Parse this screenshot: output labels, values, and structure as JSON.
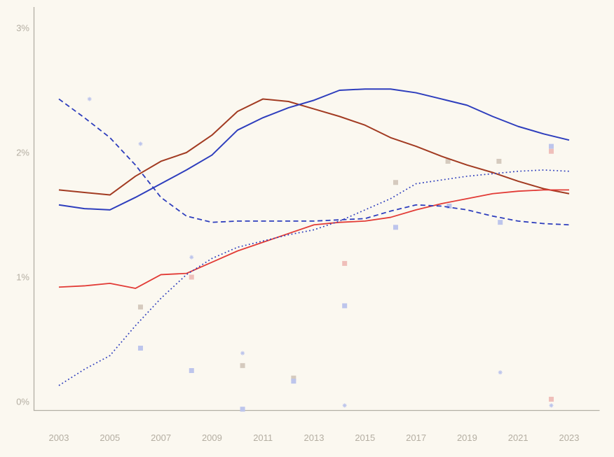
{
  "chart_data": {
    "type": "line",
    "title": "",
    "xlabel": "",
    "ylabel": "",
    "background": "#fbf8f0",
    "axis_color": "#b3afa5",
    "label_color": "#b4aea2",
    "ylim": [
      -0.1,
      3.2
    ],
    "xlim": [
      2003,
      2023
    ],
    "grid": false,
    "legend": "none",
    "x": [
      2003,
      2004,
      2005,
      2006,
      2007,
      2008,
      2009,
      2010,
      2011,
      2012,
      2013,
      2014,
      2015,
      2016,
      2017,
      2018,
      2019,
      2020,
      2021,
      2022,
      2023
    ],
    "x_ticks": [
      {
        "value": 2003,
        "label": "2003"
      },
      {
        "value": 2005,
        "label": "2005"
      },
      {
        "value": 2007,
        "label": "2007"
      },
      {
        "value": 2009,
        "label": "2009"
      },
      {
        "value": 2011,
        "label": "2011"
      },
      {
        "value": 2013,
        "label": "2013"
      },
      {
        "value": 2015,
        "label": "2015"
      },
      {
        "value": 2017,
        "label": "2017"
      },
      {
        "value": 2019,
        "label": "2019"
      },
      {
        "value": 2021,
        "label": "2021"
      },
      {
        "value": 2023,
        "label": "2023"
      }
    ],
    "y_ticks": [
      {
        "value": 0,
        "label": "0%"
      },
      {
        "value": 1,
        "label": "1%"
      },
      {
        "value": 2,
        "label": "2%"
      },
      {
        "value": 3,
        "label": "3%"
      }
    ],
    "series": [
      {
        "name": "dark-red-solid",
        "style": "solid",
        "color": "#a23b22",
        "width": 2,
        "values": [
          1.7,
          1.68,
          1.66,
          1.81,
          1.93,
          2.0,
          2.14,
          2.33,
          2.43,
          2.41,
          2.35,
          2.29,
          2.22,
          2.12,
          2.05,
          1.97,
          1.9,
          1.84,
          1.77,
          1.71,
          1.67
        ]
      },
      {
        "name": "blue-solid",
        "style": "solid",
        "color": "#2e3ebd",
        "width": 2,
        "values": [
          1.58,
          1.55,
          1.54,
          1.64,
          1.75,
          1.86,
          1.98,
          2.18,
          2.28,
          2.36,
          2.42,
          2.5,
          2.51,
          2.51,
          2.48,
          2.43,
          2.38,
          2.29,
          2.21,
          2.15,
          2.1
        ]
      },
      {
        "name": "red-solid",
        "style": "solid",
        "color": "#e23b36",
        "width": 1.8,
        "values": [
          0.92,
          0.93,
          0.95,
          0.91,
          1.02,
          1.03,
          1.12,
          1.21,
          1.28,
          1.35,
          1.42,
          1.44,
          1.45,
          1.48,
          1.54,
          1.59,
          1.63,
          1.67,
          1.69,
          1.7,
          1.7
        ]
      },
      {
        "name": "blue-dashed",
        "style": "dashed",
        "color": "#2e3ebd",
        "width": 1.8,
        "values": [
          2.43,
          2.28,
          2.12,
          1.9,
          1.64,
          1.49,
          1.44,
          1.45,
          1.45,
          1.45,
          1.45,
          1.46,
          1.47,
          1.53,
          1.58,
          1.57,
          1.54,
          1.49,
          1.45,
          1.43,
          1.42
        ]
      },
      {
        "name": "blue-dotted",
        "style": "dotted",
        "color": "#2e3ebd",
        "width": 1.7,
        "values": [
          0.13,
          0.26,
          0.37,
          0.61,
          0.83,
          1.02,
          1.15,
          1.24,
          1.29,
          1.34,
          1.38,
          1.45,
          1.54,
          1.63,
          1.75,
          1.78,
          1.81,
          1.83,
          1.85,
          1.86,
          1.85
        ]
      }
    ],
    "scatter_colors": {
      "blue": "#bdc5ec",
      "red": "#efbfba",
      "tan": "#d5cabe"
    },
    "scatter": [
      {
        "year": 2004.2,
        "value": 2.43,
        "color": "blue",
        "shape": "asterisk"
      },
      {
        "year": 2006.2,
        "value": 2.07,
        "color": "blue",
        "shape": "asterisk"
      },
      {
        "year": 2006.2,
        "value": 0.76,
        "color": "tan",
        "shape": "square"
      },
      {
        "year": 2006.2,
        "value": 0.43,
        "color": "blue",
        "shape": "square"
      },
      {
        "year": 2008.2,
        "value": 1.16,
        "color": "blue",
        "shape": "asterisk"
      },
      {
        "year": 2008.2,
        "value": 1.0,
        "color": "red",
        "shape": "square"
      },
      {
        "year": 2008.2,
        "value": 0.25,
        "color": "blue",
        "shape": "square"
      },
      {
        "year": 2010.2,
        "value": 0.39,
        "color": "blue",
        "shape": "asterisk"
      },
      {
        "year": 2010.2,
        "value": 0.29,
        "color": "tan",
        "shape": "square"
      },
      {
        "year": 2010.2,
        "value": -0.06,
        "color": "blue",
        "shape": "square"
      },
      {
        "year": 2012.2,
        "value": 0.19,
        "color": "tan",
        "shape": "square"
      },
      {
        "year": 2012.2,
        "value": 0.165,
        "color": "blue",
        "shape": "square"
      },
      {
        "year": 2014.2,
        "value": 1.11,
        "color": "red",
        "shape": "square"
      },
      {
        "year": 2014.2,
        "value": 0.77,
        "color": "blue",
        "shape": "square"
      },
      {
        "year": 2014.2,
        "value": -0.03,
        "color": "blue",
        "shape": "asterisk"
      },
      {
        "year": 2016.2,
        "value": 1.76,
        "color": "tan",
        "shape": "square"
      },
      {
        "year": 2016.2,
        "value": 1.4,
        "color": "blue",
        "shape": "square"
      },
      {
        "year": 2018.25,
        "value": 1.93,
        "color": "tan",
        "shape": "square"
      },
      {
        "year": 2018.3,
        "value": 1.57,
        "color": "blue",
        "shape": "square"
      },
      {
        "year": 2020.25,
        "value": 1.93,
        "color": "tan",
        "shape": "square"
      },
      {
        "year": 2020.3,
        "value": 1.44,
        "color": "blue",
        "shape": "square"
      },
      {
        "year": 2020.3,
        "value": 0.235,
        "color": "blue",
        "shape": "asterisk"
      },
      {
        "year": 2022.3,
        "value": 2.05,
        "color": "blue",
        "shape": "square"
      },
      {
        "year": 2022.3,
        "value": 2.01,
        "color": "red",
        "shape": "square"
      },
      {
        "year": 2022.3,
        "value": 0.02,
        "color": "red",
        "shape": "square"
      },
      {
        "year": 2022.3,
        "value": -0.03,
        "color": "blue",
        "shape": "asterisk"
      }
    ]
  }
}
